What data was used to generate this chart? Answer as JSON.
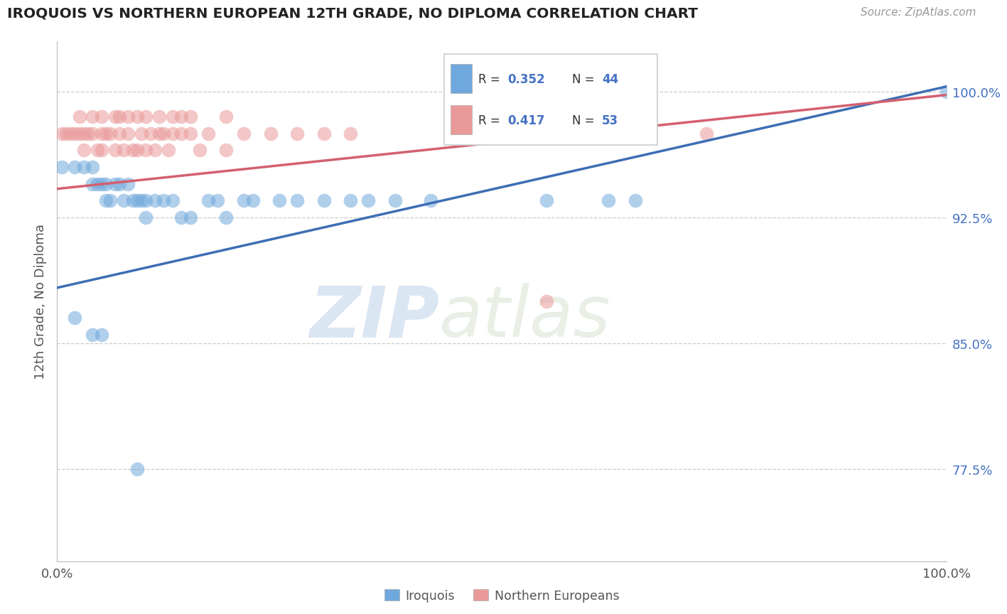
{
  "title": "IROQUOIS VS NORTHERN EUROPEAN 12TH GRADE, NO DIPLOMA CORRELATION CHART",
  "source": "Source: ZipAtlas.com",
  "ylabel": "12th Grade, No Diploma",
  "xlim": [
    0.0,
    1.0
  ],
  "ylim": [
    0.72,
    1.03
  ],
  "ytick_values": [
    0.775,
    0.85,
    0.925,
    1.0
  ],
  "ytick_labels": [
    "77.5%",
    "85.0%",
    "92.5%",
    "100.0%"
  ],
  "legend_r1": "0.352",
  "legend_n1": "44",
  "legend_r2": "0.417",
  "legend_n2": "53",
  "color_iroquois": "#6fa8dc",
  "color_northern": "#ea9999",
  "trendline_color_blue": "#3c6eb4",
  "trendline_color_pink": "#d46070",
  "blue_trend_x0": 0.0,
  "blue_trend_y0": 0.883,
  "blue_trend_x1": 1.0,
  "blue_trend_y1": 1.003,
  "pink_trend_x0": 0.0,
  "pink_trend_y0": 0.942,
  "pink_trend_x1": 1.0,
  "pink_trend_y1": 0.998,
  "blue_x": [
    0.005,
    0.02,
    0.03,
    0.04,
    0.04,
    0.045,
    0.05,
    0.055,
    0.055,
    0.06,
    0.065,
    0.07,
    0.075,
    0.08,
    0.085,
    0.09,
    0.095,
    0.1,
    0.1,
    0.11,
    0.12,
    0.13,
    0.14,
    0.15,
    0.17,
    0.18,
    0.19,
    0.21,
    0.22,
    0.25,
    0.27,
    0.3,
    0.33,
    0.35,
    0.38,
    0.42,
    0.55,
    0.62,
    0.65,
    1.0,
    0.02,
    0.04,
    0.05,
    0.09
  ],
  "blue_y": [
    0.955,
    0.955,
    0.955,
    0.955,
    0.945,
    0.945,
    0.945,
    0.945,
    0.935,
    0.935,
    0.945,
    0.945,
    0.935,
    0.945,
    0.935,
    0.935,
    0.935,
    0.935,
    0.925,
    0.935,
    0.935,
    0.935,
    0.925,
    0.925,
    0.935,
    0.935,
    0.925,
    0.935,
    0.935,
    0.935,
    0.935,
    0.935,
    0.935,
    0.935,
    0.935,
    0.935,
    0.935,
    0.935,
    0.935,
    1.0,
    0.865,
    0.855,
    0.855,
    0.775
  ],
  "pink_x": [
    0.005,
    0.01,
    0.015,
    0.02,
    0.025,
    0.03,
    0.03,
    0.035,
    0.04,
    0.045,
    0.05,
    0.05,
    0.055,
    0.06,
    0.065,
    0.07,
    0.075,
    0.08,
    0.085,
    0.09,
    0.095,
    0.1,
    0.105,
    0.11,
    0.115,
    0.12,
    0.125,
    0.13,
    0.14,
    0.15,
    0.16,
    0.17,
    0.19,
    0.21,
    0.24,
    0.27,
    0.3,
    0.33,
    0.55,
    0.73,
    0.025,
    0.04,
    0.05,
    0.065,
    0.07,
    0.08,
    0.09,
    0.1,
    0.115,
    0.13,
    0.14,
    0.15,
    0.19
  ],
  "pink_y": [
    0.975,
    0.975,
    0.975,
    0.975,
    0.975,
    0.975,
    0.965,
    0.975,
    0.975,
    0.965,
    0.975,
    0.965,
    0.975,
    0.975,
    0.965,
    0.975,
    0.965,
    0.975,
    0.965,
    0.965,
    0.975,
    0.965,
    0.975,
    0.965,
    0.975,
    0.975,
    0.965,
    0.975,
    0.975,
    0.975,
    0.965,
    0.975,
    0.965,
    0.975,
    0.975,
    0.975,
    0.975,
    0.975,
    0.875,
    0.975,
    0.985,
    0.985,
    0.985,
    0.985,
    0.985,
    0.985,
    0.985,
    0.985,
    0.985,
    0.985,
    0.985,
    0.985,
    0.985
  ]
}
